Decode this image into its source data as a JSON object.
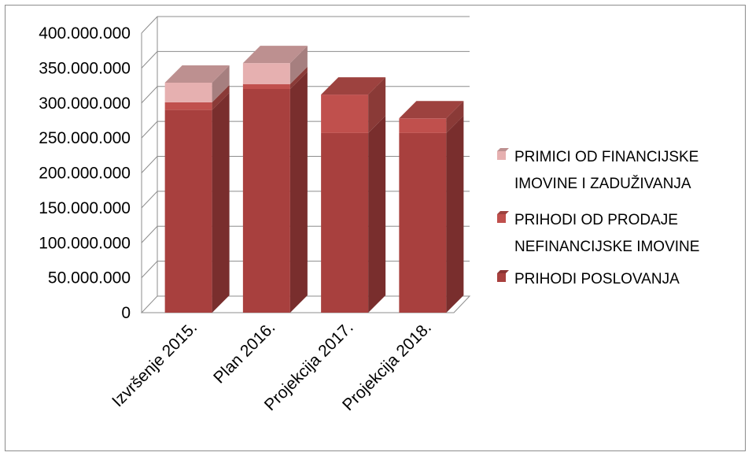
{
  "chart_data": {
    "type": "bar",
    "stacked": true,
    "three_d": true,
    "categories": [
      "Izvršenje 2015.",
      "Plan 2016.",
      "Projekcija 2017.",
      "Projekcija 2018."
    ],
    "series": [
      {
        "name": "PRIHODI POSLOVANJA",
        "color": "#a8403e",
        "values": [
          290000000,
          320000000,
          257000000,
          257000000
        ]
      },
      {
        "name": "PRIHODI OD PRODAJE NEFINANCIJSKE IMOVINE",
        "color": "#c0504d",
        "values": [
          11000000,
          7000000,
          55000000,
          21000000
        ]
      },
      {
        "name": "PRIMICI OD FINANCIJSKE IMOVINE I ZADUŽIVANJA",
        "color": "#e6b0b0",
        "values": [
          28000000,
          30000000,
          0,
          0
        ]
      }
    ],
    "ylim": [
      0,
      400000000
    ],
    "yticks": [
      0,
      50000000,
      100000000,
      150000000,
      200000000,
      250000000,
      300000000,
      350000000,
      400000000
    ],
    "ytick_labels": [
      "0",
      "50.000.000",
      "100.000.000",
      "150.000.000",
      "200.000.000",
      "250.000.000",
      "300.000.000",
      "350.000.000",
      "400.000.000"
    ],
    "grid": true,
    "legend_position": "right",
    "legend_order": [
      "PRIMICI OD FINANCIJSKE IMOVINE I ZADUŽIVANJA",
      "PRIHODI OD PRODAJE NEFINANCIJSKE IMOVINE",
      "PRIHODI POSLOVANJA"
    ],
    "legend_lines": [
      [
        "PRIMICI OD FINANCIJSKE",
        "IMOVINE I ZADUŽIVANJA"
      ],
      [
        "PRIHODI OD PRODAJE",
        "NEFINANCIJSKE IMOVINE"
      ],
      [
        "PRIHODI POSLOVANJA"
      ]
    ]
  }
}
